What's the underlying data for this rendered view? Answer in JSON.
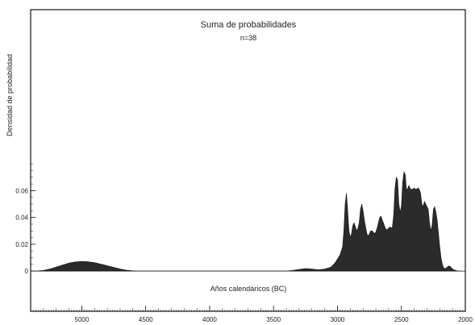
{
  "chart_data": {
    "type": "area",
    "title": "Suma de probabilidades",
    "subtitle": "n=38",
    "xlabel": "Años calendáricos (BC)",
    "ylabel": "Densidad de probabilidad",
    "x_reversed": true,
    "xlim": [
      5400,
      2000
    ],
    "ylim": [
      -0.03,
      0.195
    ],
    "x_ticks": [
      5000,
      4500,
      4000,
      3500,
      3000,
      2500,
      2000
    ],
    "y_ticks": [
      0,
      0.02,
      0.04,
      0.06
    ],
    "grid": false,
    "series": [
      {
        "x": [
          5400,
          5350,
          5300,
          5250,
          5200,
          5150,
          5100,
          5050,
          5000,
          4950,
          4900,
          4850,
          4800,
          4750,
          4700,
          4650,
          4600,
          4550,
          4500,
          4450,
          4400,
          4300,
          4200,
          4100,
          4000,
          3900,
          3800,
          3700,
          3600,
          3500,
          3450,
          3400,
          3350,
          3300,
          3250,
          3200,
          3150,
          3100,
          3050,
          3020,
          3000,
          2980,
          2960,
          2950,
          2940,
          2930,
          2920,
          2910,
          2900,
          2890,
          2880,
          2870,
          2860,
          2850,
          2840,
          2830,
          2820,
          2810,
          2800,
          2790,
          2780,
          2770,
          2760,
          2750,
          2740,
          2730,
          2720,
          2710,
          2700,
          2690,
          2680,
          2670,
          2660,
          2650,
          2640,
          2630,
          2620,
          2610,
          2600,
          2590,
          2580,
          2570,
          2560,
          2550,
          2540,
          2530,
          2520,
          2510,
          2500,
          2490,
          2480,
          2470,
          2460,
          2450,
          2440,
          2430,
          2420,
          2410,
          2400,
          2390,
          2380,
          2370,
          2360,
          2350,
          2340,
          2330,
          2320,
          2310,
          2300,
          2290,
          2280,
          2270,
          2260,
          2250,
          2240,
          2230,
          2220,
          2210,
          2200,
          2190,
          2180,
          2170,
          2160,
          2150,
          2140,
          2130,
          2120,
          2110,
          2100,
          2080,
          2060,
          2040
        ],
        "y": [
          0,
          0,
          0.0005,
          0.0015,
          0.003,
          0.0045,
          0.006,
          0.0068,
          0.0072,
          0.007,
          0.0063,
          0.0052,
          0.004,
          0.0027,
          0.0015,
          0.0007,
          0.0002,
          0,
          0,
          0,
          0,
          0,
          0,
          0,
          0,
          0,
          0,
          0,
          0,
          0,
          0,
          0,
          0.0005,
          0.0012,
          0.0018,
          0.0015,
          0.001,
          0.0015,
          0.003,
          0.006,
          0.009,
          0.012,
          0.018,
          0.03,
          0.05,
          0.058,
          0.044,
          0.03,
          0.025,
          0.028,
          0.034,
          0.036,
          0.033,
          0.03,
          0.032,
          0.036,
          0.046,
          0.05,
          0.045,
          0.038,
          0.033,
          0.028,
          0.026,
          0.028,
          0.03,
          0.03,
          0.029,
          0.028,
          0.029,
          0.032,
          0.036,
          0.04,
          0.041,
          0.038,
          0.036,
          0.033,
          0.031,
          0.031,
          0.032,
          0.033,
          0.032,
          0.033,
          0.042,
          0.062,
          0.07,
          0.068,
          0.05,
          0.044,
          0.048,
          0.066,
          0.074,
          0.072,
          0.06,
          0.062,
          0.064,
          0.061,
          0.061,
          0.061,
          0.062,
          0.061,
          0.061,
          0.062,
          0.061,
          0.058,
          0.05,
          0.048,
          0.052,
          0.05,
          0.048,
          0.046,
          0.036,
          0.03,
          0.034,
          0.046,
          0.048,
          0.044,
          0.038,
          0.028,
          0.018,
          0.01,
          0.005,
          0.0025,
          0.0018,
          0.0022,
          0.003,
          0.0038,
          0.0035,
          0.0025,
          0.0015,
          0.0006,
          0.0001,
          0
        ]
      }
    ]
  }
}
